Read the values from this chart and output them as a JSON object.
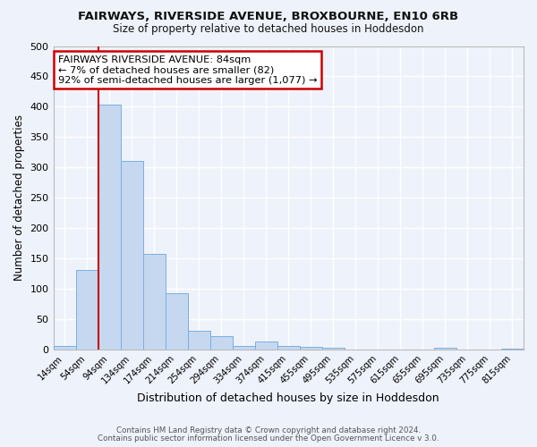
{
  "title1": "FAIRWAYS, RIVERSIDE AVENUE, BROXBOURNE, EN10 6RB",
  "title2": "Size of property relative to detached houses in Hoddesdon",
  "xlabel": "Distribution of detached houses by size in Hoddesdon",
  "ylabel": "Number of detached properties",
  "bar_color": "#c5d8f0",
  "bar_edge_color": "#7aafe0",
  "background_color": "#eef2fa",
  "grid_color": "#ffffff",
  "categories": [
    "14sqm",
    "54sqm",
    "94sqm",
    "134sqm",
    "174sqm",
    "214sqm",
    "254sqm",
    "294sqm",
    "334sqm",
    "374sqm",
    "415sqm",
    "455sqm",
    "495sqm",
    "535sqm",
    "575sqm",
    "615sqm",
    "655sqm",
    "695sqm",
    "735sqm",
    "775sqm",
    "815sqm"
  ],
  "values": [
    5,
    130,
    403,
    310,
    157,
    93,
    30,
    21,
    5,
    13,
    5,
    4,
    3,
    0,
    0,
    0,
    0,
    2,
    0,
    0,
    1
  ],
  "ylim": [
    0,
    500
  ],
  "yticks": [
    0,
    50,
    100,
    150,
    200,
    250,
    300,
    350,
    400,
    450,
    500
  ],
  "redline_x": 1.5,
  "annotation_title": "FAIRWAYS RIVERSIDE AVENUE: 84sqm",
  "annotation_line1": "← 7% of detached houses are smaller (82)",
  "annotation_line2": "92% of semi-detached houses are larger (1,077) →",
  "annotation_box_color": "#ffffff",
  "annotation_box_edge": "#cc0000",
  "redline_color": "#cc0000",
  "footer1": "Contains HM Land Registry data © Crown copyright and database right 2024.",
  "footer2": "Contains public sector information licensed under the Open Government Licence v 3.0."
}
